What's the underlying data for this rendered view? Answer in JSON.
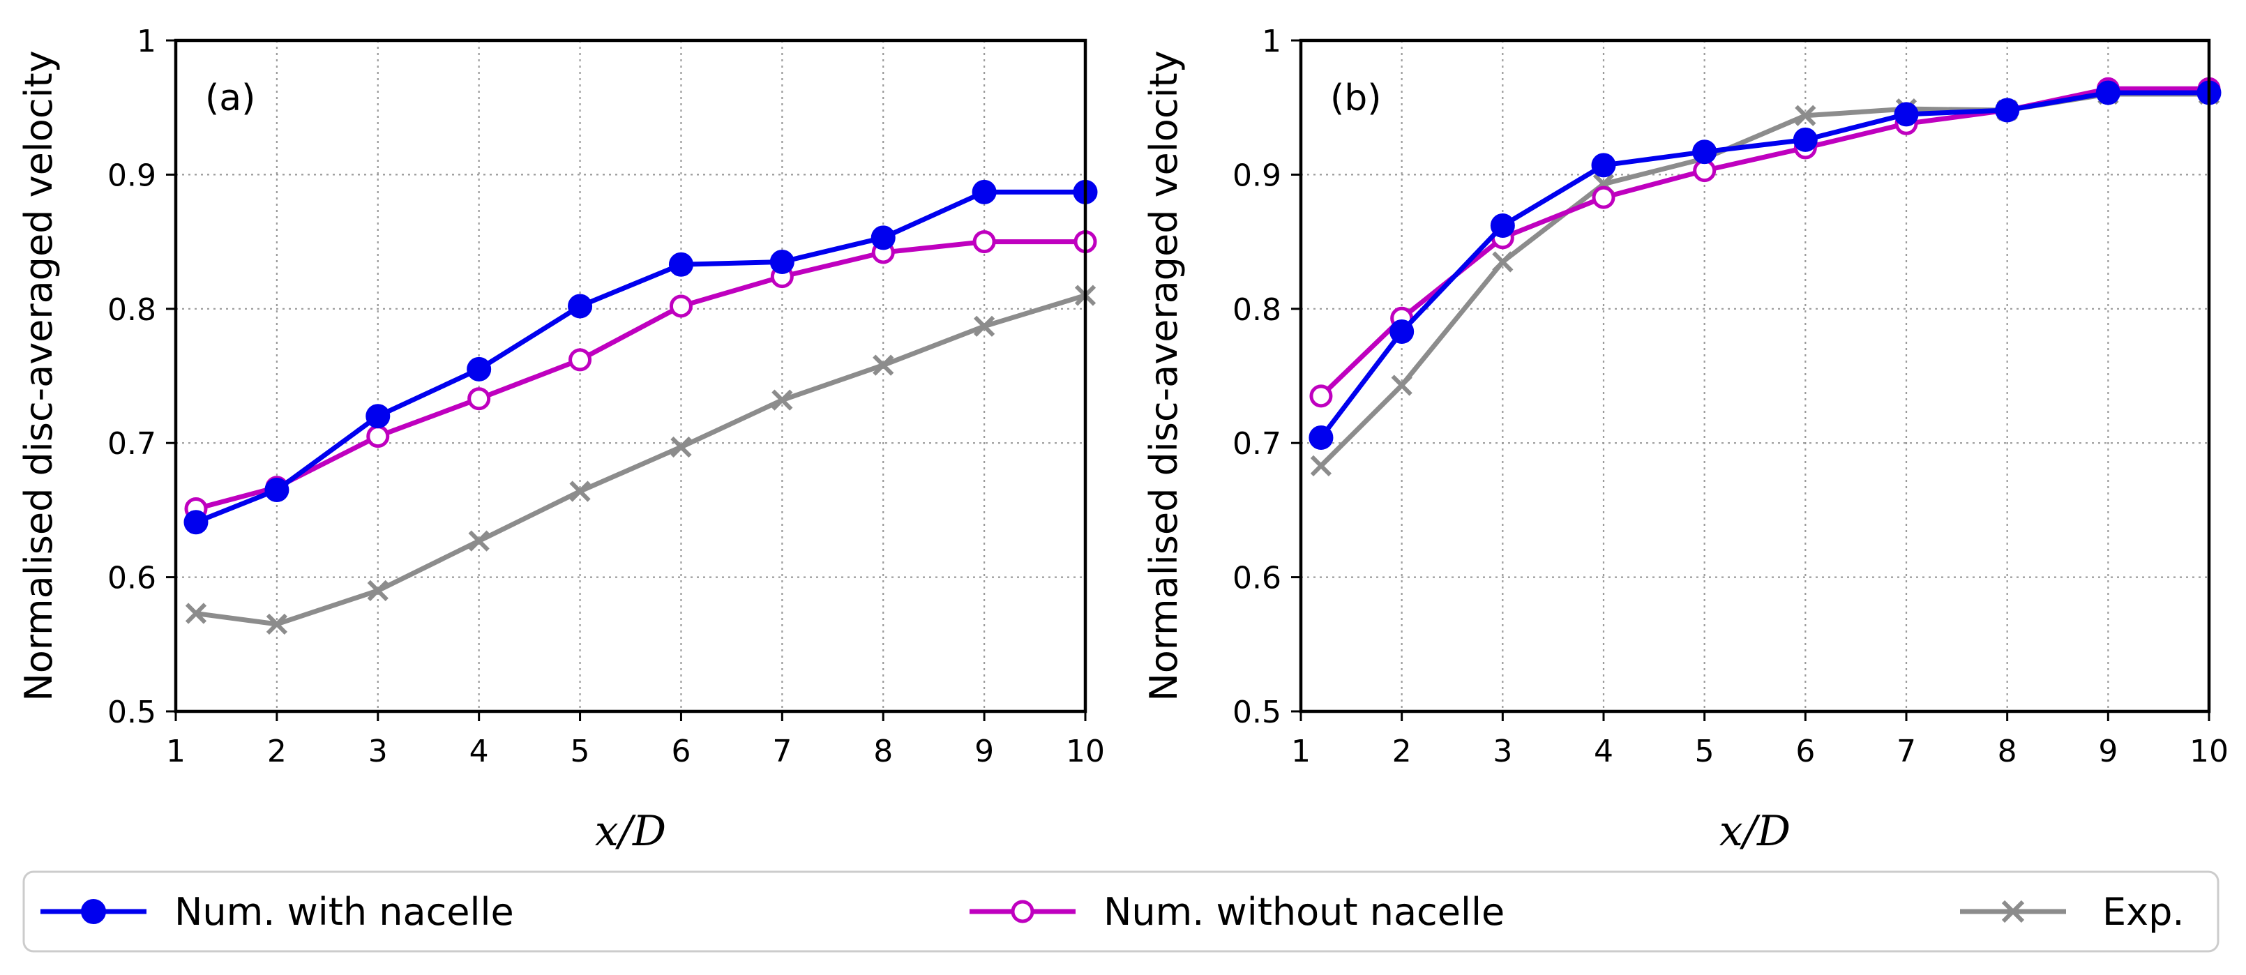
{
  "chart_data": [
    {
      "type": "line",
      "panel_label": "(a)",
      "xlabel": "x/D",
      "ylabel": "Normalised disc-averaged velocity",
      "xlim": [
        1,
        10
      ],
      "ylim": [
        0.5,
        1.0
      ],
      "xticks": [
        "1",
        "2",
        "3",
        "4",
        "5",
        "6",
        "7",
        "8",
        "9",
        "10"
      ],
      "yticks": [
        "0.5",
        "0.6",
        "0.7",
        "0.8",
        "0.9",
        "1"
      ],
      "grid": true,
      "x": [
        1.2,
        2,
        3,
        4,
        5,
        6,
        7,
        8,
        9,
        10
      ],
      "series": [
        {
          "name": "Num. with nacelle",
          "values": [
            0.641,
            0.665,
            0.72,
            0.755,
            0.802,
            0.833,
            0.835,
            0.853,
            0.887,
            0.887
          ]
        },
        {
          "name": "Num. without nacelle",
          "values": [
            0.651,
            0.667,
            0.705,
            0.733,
            0.762,
            0.802,
            0.824,
            0.842,
            0.85,
            0.85
          ]
        },
        {
          "name": "Exp.",
          "values": [
            0.573,
            0.565,
            0.59,
            0.627,
            0.664,
            0.697,
            0.732,
            0.758,
            0.787,
            0.81
          ]
        }
      ]
    },
    {
      "type": "line",
      "panel_label": "(b)",
      "xlabel": "x/D",
      "ylabel": "Normalised disc-averaged velocity",
      "xlim": [
        1,
        10
      ],
      "ylim": [
        0.5,
        1.0
      ],
      "xticks": [
        "1",
        "2",
        "3",
        "4",
        "5",
        "6",
        "7",
        "8",
        "9",
        "10"
      ],
      "yticks": [
        "0.5",
        "0.6",
        "0.7",
        "0.8",
        "0.9",
        "1"
      ],
      "grid": true,
      "x": [
        1.2,
        2,
        3,
        4,
        5,
        6,
        7,
        8,
        9,
        10
      ],
      "series": [
        {
          "name": "Num. with nacelle",
          "values": [
            0.704,
            0.783,
            0.862,
            0.907,
            0.917,
            0.926,
            0.945,
            0.948,
            0.961,
            0.961
          ]
        },
        {
          "name": "Num. without nacelle",
          "values": [
            0.735,
            0.793,
            0.853,
            0.883,
            0.903,
            0.92,
            0.938,
            0.948,
            0.964,
            0.964
          ]
        },
        {
          "name": "Exp.",
          "values": [
            0.683,
            0.743,
            0.835,
            0.893,
            0.912,
            0.944,
            0.949,
            0.948,
            0.96,
            0.96
          ]
        }
      ]
    }
  ],
  "series_styles": [
    {
      "name": "Num. with nacelle",
      "color": "#0000ee",
      "marker": "filled-circle"
    },
    {
      "name": "Num. without nacelle",
      "color": "#bf00bf",
      "marker": "open-circle"
    },
    {
      "name": "Exp.",
      "color": "#8c8c8c",
      "marker": "x-cross"
    }
  ],
  "legend": {
    "placement": "bottom",
    "entries": [
      "Num. with nacelle",
      "Num. without nacelle",
      "Exp."
    ]
  }
}
